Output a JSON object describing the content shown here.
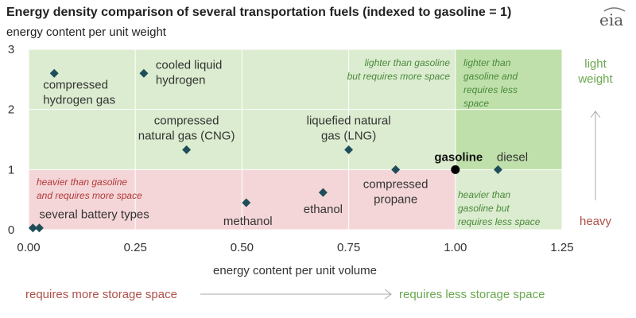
{
  "logo_text": "eia",
  "chart_data": {
    "type": "scatter",
    "title": "Energy density comparison of several transportation fuels (indexed to gasoline = 1)",
    "ylabel": "energy content per unit weight",
    "xlabel": "energy content per unit volume",
    "xlim": [
      0,
      1.25
    ],
    "ylim": [
      0,
      3
    ],
    "x_ticks": [
      "0.00",
      "0.25",
      "0.50",
      "0.75",
      "1.00",
      "1.25"
    ],
    "y_ticks": [
      "0",
      "1",
      "2",
      "3"
    ],
    "grid": true,
    "points": [
      {
        "label": [
          "compressed",
          "hydrogen gas"
        ],
        "x": 0.06,
        "y": 2.6,
        "marker": "diamond"
      },
      {
        "label": [
          "cooled liquid",
          "hydrogen"
        ],
        "x": 0.27,
        "y": 2.6,
        "marker": "diamond"
      },
      {
        "label": [
          "compressed",
          "natural gas (CNG)"
        ],
        "x": 0.37,
        "y": 1.33,
        "marker": "diamond"
      },
      {
        "label": [
          "liquefied natural",
          "gas (LNG)"
        ],
        "x": 0.75,
        "y": 1.33,
        "marker": "diamond"
      },
      {
        "label": [
          "compressed",
          "propane"
        ],
        "x": 0.86,
        "y": 1.0,
        "marker": "diamond"
      },
      {
        "label": [
          "gasoline"
        ],
        "x": 1.0,
        "y": 1.0,
        "marker": "circle",
        "bold": true
      },
      {
        "label": [
          "diesel"
        ],
        "x": 1.1,
        "y": 1.0,
        "marker": "diamond"
      },
      {
        "label": [
          "ethanol"
        ],
        "x": 0.69,
        "y": 0.62,
        "marker": "diamond"
      },
      {
        "label": [
          "methanol"
        ],
        "x": 0.51,
        "y": 0.45,
        "marker": "diamond"
      },
      {
        "label": [
          "several battery types"
        ],
        "x": 0.01,
        "y": 0.03,
        "marker": "diamond"
      },
      {
        "label": [
          ""
        ],
        "x": 0.025,
        "y": 0.03,
        "marker": "diamond"
      }
    ],
    "regions": [
      {
        "color": "#dcecd0",
        "x0": 0,
        "x1": 1.0,
        "y0": 1,
        "y1": 3
      },
      {
        "color": "#bfe0aa",
        "x0": 1.0,
        "x1": 1.25,
        "y0": 1,
        "y1": 3
      },
      {
        "color": "#f5d6d8",
        "x0": 0,
        "x1": 1.0,
        "y0": 0,
        "y1": 1
      },
      {
        "color": "#dcecd0",
        "x0": 1.0,
        "x1": 1.25,
        "y0": 0,
        "y1": 1
      }
    ],
    "annotations": {
      "top_mid": [
        "lighter than gasoline",
        "but requires more space"
      ],
      "top_right": [
        "lighter than",
        "gasoline and",
        "requires less",
        "space"
      ],
      "bottom_left": [
        "heavier than gasoline",
        "and requires more space"
      ],
      "bottom_right": [
        "heavier than",
        "gasoline but",
        "requires less space"
      ]
    },
    "side_labels": {
      "top": [
        "light",
        "weight"
      ],
      "bottom": "heavy"
    },
    "bottom_labels": {
      "left": "requires more storage space",
      "right": "requires less storage space"
    },
    "colors": {
      "marker": "#1f4e5a",
      "gasoline_marker": "#000000",
      "grid": "#ffffff",
      "green_text": "#6aa84f",
      "red_text": "#b0504a",
      "arrow": "#aaaaaa"
    }
  }
}
